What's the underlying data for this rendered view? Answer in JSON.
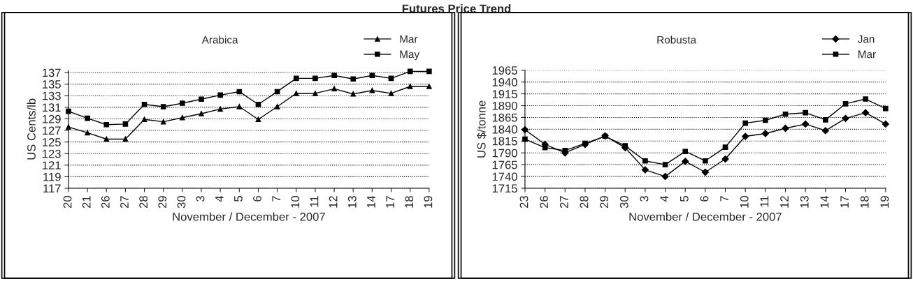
{
  "chart_data": [
    {
      "type": "line",
      "title": "Futures Price Trend",
      "subtitle": "Arabica",
      "xlabel": "November / December - 2007",
      "ylabel": "US Cents/lb",
      "categories": [
        "20",
        "21",
        "26",
        "27",
        "28",
        "29",
        "30",
        "3",
        "4",
        "5",
        "6",
        "7",
        "10",
        "11",
        "12",
        "13",
        "14",
        "17",
        "18",
        "19"
      ],
      "series": [
        {
          "name": "Mar",
          "color": "#000000",
          "marker": "triangle",
          "values": [
            127.6,
            126.6,
            125.5,
            125.5,
            128.9,
            128.5,
            129.2,
            129.9,
            130.7,
            131.1,
            128.9,
            131.1,
            133.4,
            133.4,
            134.2,
            133.3,
            133.9,
            133.4,
            134.6,
            134.6
          ]
        },
        {
          "name": "May",
          "color": "#000000",
          "marker": "square",
          "values": [
            130.3,
            129.1,
            128.0,
            128.1,
            131.5,
            131.1,
            131.7,
            132.4,
            133.1,
            133.7,
            131.5,
            133.7,
            136.0,
            136.0,
            136.5,
            135.9,
            136.5,
            136.0,
            137.2,
            137.2
          ]
        }
      ],
      "ylim": [
        117,
        137.4
      ],
      "yticks": [
        117,
        119,
        121,
        123,
        125,
        127,
        129,
        131,
        133,
        135,
        137
      ],
      "grid": "y",
      "legend": "top right"
    },
    {
      "type": "line",
      "subtitle": "Robusta",
      "xlabel": "November / December - 2007",
      "ylabel": "US $/tonne",
      "categories": [
        "23",
        "26",
        "27",
        "28",
        "29",
        "30",
        "3",
        "4",
        "5",
        "6",
        "7",
        "10",
        "11",
        "12",
        "13",
        "14",
        "17",
        "18",
        "19"
      ],
      "series": [
        {
          "name": "Jan",
          "color": "#000000",
          "marker": "diamond",
          "values": [
            1839,
            1808,
            1790,
            1808,
            1826,
            1801,
            1754,
            1740,
            1772,
            1749,
            1777,
            1825,
            1831,
            1842,
            1851,
            1837,
            1863,
            1875,
            1851
          ]
        },
        {
          "name": "Mar",
          "color": "#000000",
          "marker": "square",
          "values": [
            1819,
            1801,
            1795,
            1810,
            1825,
            1805,
            1773,
            1765,
            1793,
            1773,
            1802,
            1853,
            1859,
            1872,
            1875,
            1860,
            1894,
            1904,
            1884
          ]
        }
      ],
      "ylim": [
        1715,
        1965
      ],
      "yticks": [
        1715,
        1740,
        1765,
        1790,
        1815,
        1840,
        1865,
        1890,
        1915,
        1940,
        1965
      ],
      "grid": "y",
      "legend": "top right"
    }
  ]
}
